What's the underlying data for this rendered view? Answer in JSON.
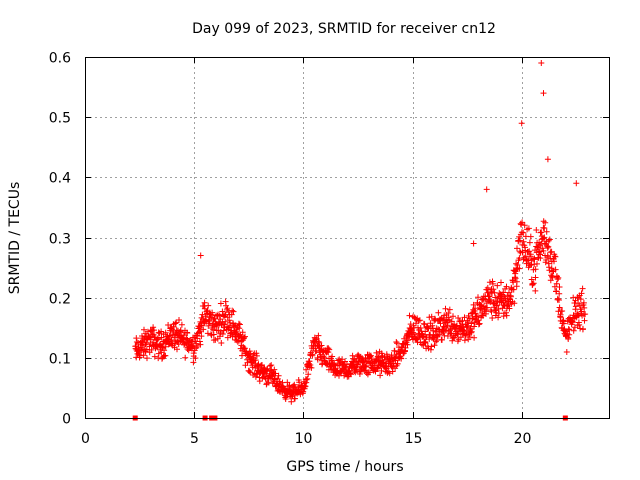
{
  "chart_data": {
    "type": "scatter",
    "title": "Day 099 of 2023, SRMTID for receiver cn12",
    "xlabel": "GPS time / hours",
    "ylabel": "SRMTID / TECUs",
    "xlim": [
      0,
      24
    ],
    "ylim": [
      0,
      0.6
    ],
    "grid": true,
    "marker": "+",
    "colors": {
      "series": "#ff0000",
      "grid": "#a0a0a0",
      "frame": "#000000"
    },
    "xticks": [
      {
        "value": 0,
        "label": "0"
      },
      {
        "value": 5,
        "label": "5"
      },
      {
        "value": 10,
        "label": "10"
      },
      {
        "value": 15,
        "label": "15"
      },
      {
        "value": 20,
        "label": "20"
      }
    ],
    "yticks": [
      {
        "value": 0,
        "label": "0"
      },
      {
        "value": 0.1,
        "label": "0.1"
      },
      {
        "value": 0.2,
        "label": "0.2"
      },
      {
        "value": 0.3,
        "label": "0.3"
      },
      {
        "value": 0.4,
        "label": "0.4"
      },
      {
        "value": 0.5,
        "label": "0.5"
      },
      {
        "value": 0.6,
        "label": "0.6"
      }
    ],
    "trend": [
      [
        2.3,
        0.11
      ],
      [
        3.0,
        0.13
      ],
      [
        3.5,
        0.12
      ],
      [
        4.0,
        0.14
      ],
      [
        4.5,
        0.13
      ],
      [
        5.0,
        0.12
      ],
      [
        5.5,
        0.17
      ],
      [
        6.0,
        0.15
      ],
      [
        6.5,
        0.17
      ],
      [
        7.0,
        0.14
      ],
      [
        7.5,
        0.1
      ],
      [
        8.0,
        0.08
      ],
      [
        8.5,
        0.07
      ],
      [
        9.0,
        0.05
      ],
      [
        9.5,
        0.04
      ],
      [
        10.0,
        0.05
      ],
      [
        10.5,
        0.12
      ],
      [
        11.0,
        0.1
      ],
      [
        11.5,
        0.08
      ],
      [
        12.0,
        0.08
      ],
      [
        12.5,
        0.09
      ],
      [
        13.0,
        0.09
      ],
      [
        13.5,
        0.09
      ],
      [
        14.0,
        0.09
      ],
      [
        14.5,
        0.11
      ],
      [
        15.0,
        0.15
      ],
      [
        15.5,
        0.14
      ],
      [
        16.0,
        0.14
      ],
      [
        16.5,
        0.16
      ],
      [
        17.0,
        0.15
      ],
      [
        17.5,
        0.15
      ],
      [
        18.0,
        0.17
      ],
      [
        18.5,
        0.2
      ],
      [
        19.0,
        0.19
      ],
      [
        19.5,
        0.2
      ],
      [
        20.0,
        0.3
      ],
      [
        20.5,
        0.25
      ],
      [
        21.0,
        0.3
      ],
      [
        21.5,
        0.25
      ],
      [
        22.0,
        0.13
      ],
      [
        22.5,
        0.18
      ],
      [
        22.9,
        0.18
      ]
    ],
    "peaks": [
      {
        "x": 5.3,
        "y": 0.27
      },
      {
        "x": 20.0,
        "y": 0.49
      },
      {
        "x": 20.9,
        "y": 0.59
      },
      {
        "x": 21.0,
        "y": 0.54
      },
      {
        "x": 18.4,
        "y": 0.38
      },
      {
        "x": 22.5,
        "y": 0.39
      },
      {
        "x": 17.8,
        "y": 0.29
      },
      {
        "x": 21.2,
        "y": 0.43
      }
    ],
    "zero_points": [
      {
        "x": 2.3,
        "y": 0
      },
      {
        "x": 5.5,
        "y": 0
      },
      {
        "x": 5.8,
        "y": 0
      },
      {
        "x": 5.95,
        "y": 0
      },
      {
        "x": 22.0,
        "y": 0
      }
    ],
    "n_points": 1500
  }
}
